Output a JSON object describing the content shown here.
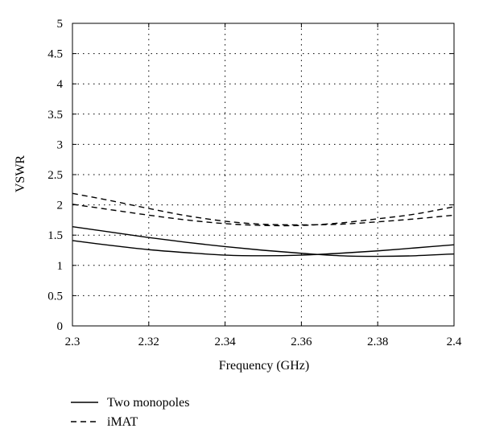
{
  "chart_data": {
    "type": "line",
    "xlabel": "Frequency (GHz)",
    "ylabel": "VSWR",
    "xlim": [
      2.3,
      2.4
    ],
    "ylim": [
      0,
      5
    ],
    "x_ticks": [
      "2.3",
      "2.32",
      "2.34",
      "2.36",
      "2.38",
      "2.4"
    ],
    "y_ticks": [
      "0",
      "0.5",
      "1",
      "1.5",
      "2",
      "2.5",
      "3",
      "3.5",
      "4",
      "4.5",
      "5"
    ],
    "grid": true,
    "legend_position": "bottom-left, below plot",
    "legend": [
      {
        "label": "Two monopoles",
        "style": "solid"
      },
      {
        "label": "iMAT",
        "style": "dashed"
      }
    ],
    "series": [
      {
        "group": "Two monopoles",
        "style": "solid",
        "x": [
          2.3,
          2.31,
          2.32,
          2.33,
          2.34,
          2.35,
          2.36,
          2.37,
          2.38,
          2.39,
          2.4
        ],
        "y": [
          1.64,
          1.55,
          1.46,
          1.38,
          1.31,
          1.25,
          1.2,
          1.16,
          1.15,
          1.16,
          1.19
        ]
      },
      {
        "group": "Two monopoles",
        "style": "solid",
        "x": [
          2.3,
          2.31,
          2.32,
          2.33,
          2.34,
          2.35,
          2.36,
          2.37,
          2.38,
          2.39,
          2.4
        ],
        "y": [
          1.41,
          1.33,
          1.26,
          1.21,
          1.17,
          1.16,
          1.17,
          1.2,
          1.24,
          1.29,
          1.34
        ]
      },
      {
        "group": "iMAT",
        "style": "dashed",
        "x": [
          2.3,
          2.31,
          2.32,
          2.33,
          2.34,
          2.35,
          2.36,
          2.37,
          2.38,
          2.39,
          2.4
        ],
        "y": [
          2.19,
          2.07,
          1.94,
          1.82,
          1.73,
          1.68,
          1.67,
          1.68,
          1.72,
          1.77,
          1.83
        ]
      },
      {
        "group": "iMAT",
        "style": "dashed",
        "x": [
          2.3,
          2.31,
          2.32,
          2.33,
          2.34,
          2.35,
          2.36,
          2.37,
          2.38,
          2.39,
          2.4
        ],
        "y": [
          2.01,
          1.92,
          1.83,
          1.75,
          1.69,
          1.66,
          1.66,
          1.7,
          1.77,
          1.85,
          1.97
        ]
      }
    ]
  }
}
